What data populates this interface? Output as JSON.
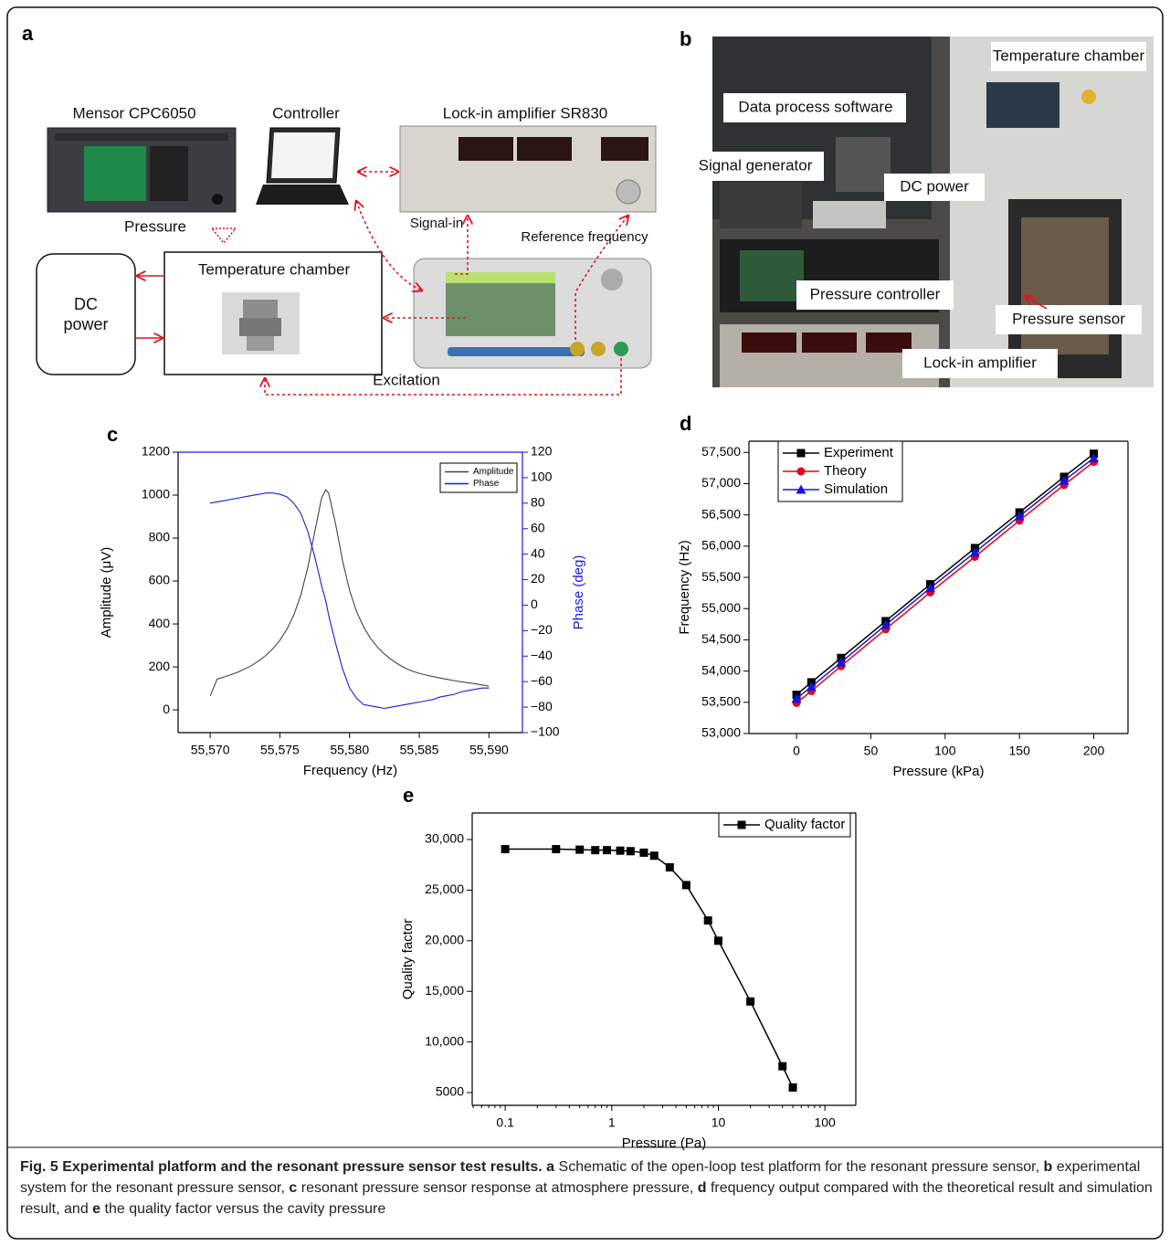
{
  "figure": {
    "panel_a": {
      "letter": "a",
      "mensor": "Mensor CPC6050",
      "controller": "Controller",
      "lockin": "Lock-in amplifier SR830",
      "pressure": "Pressure",
      "signal_in": "Signal-in",
      "reference": "Reference frequency",
      "chamber": "Temperature chamber",
      "dc_power": "DC power",
      "excitation": "Excitation"
    },
    "panel_b": {
      "letter": "b",
      "chamber": "Temperature chamber",
      "software": "Data process software",
      "generator": "Signal generator",
      "dc_power": "DC power",
      "controller": "Pressure controller",
      "sensor": "Pressure sensor",
      "lockin": "Lock-in amplifier"
    }
  },
  "chart_data": [
    {
      "type": "line",
      "letter": "c",
      "xlabel": "Frequency (Hz)",
      "ylabel": "Amplitude (μV)",
      "y2label": "Phase (deg)",
      "legend": "upper right",
      "x": [
        55570,
        55570.5,
        55571,
        55571.5,
        55572,
        55572.5,
        55573,
        55573.5,
        55574,
        55574.5,
        55575,
        55575.5,
        55576,
        55576.5,
        55577,
        55577.5,
        55578,
        55578.3,
        55578.5,
        55579,
        55579.5,
        55580,
        55580.5,
        55581,
        55581.5,
        55582,
        55582.5,
        55583,
        55583.5,
        55584,
        55584.5,
        55585,
        55585.5,
        55586,
        55586.5,
        55587,
        55587.5,
        55588,
        55588.5,
        55589,
        55589.5,
        55590
      ],
      "series": [
        {
          "name": "Amplitude",
          "color": "#444444",
          "values": [
            65,
            143,
            153,
            164,
            176,
            191,
            208,
            229,
            254,
            285,
            324,
            375,
            442,
            534,
            662,
            829,
            988,
            1025,
            1009,
            865,
            693,
            557,
            458,
            387,
            333,
            292,
            260,
            234,
            212,
            194,
            180,
            170,
            162,
            155,
            148,
            142,
            136,
            131,
            126,
            122,
            116,
            110
          ]
        },
        {
          "name": "Phase",
          "color": "#1a1adb",
          "axis": "y2",
          "values": [
            80,
            81,
            82,
            83,
            84,
            85,
            86,
            87,
            88,
            88,
            87,
            85,
            80,
            72,
            58,
            38,
            15,
            3,
            -8,
            -30,
            -50,
            -65,
            -73,
            -78,
            -79,
            -80,
            -81,
            -80,
            -79,
            -78,
            -77,
            -76,
            -75,
            -74,
            -72,
            -71,
            -70,
            -68,
            -67,
            -66,
            -65,
            -65
          ]
        }
      ],
      "xlim": [
        55567.7,
        55592.4
      ],
      "xticks": [
        {
          "value": 55570,
          "label": "55,570"
        },
        {
          "value": 55575,
          "label": "55,575"
        },
        {
          "value": 55580,
          "label": "55,580"
        },
        {
          "value": 55585,
          "label": "55,585"
        },
        {
          "value": 55590,
          "label": "55,590"
        }
      ],
      "ylim": [
        -106,
        1200
      ],
      "yticks": [
        0,
        200,
        400,
        600,
        800,
        1000,
        1200
      ],
      "y2lim": [
        -100,
        120
      ],
      "y2ticks": [
        {
          "value": -100,
          "label": "−100"
        },
        {
          "value": -80,
          "label": "−80"
        },
        {
          "value": -60,
          "label": "−60"
        },
        {
          "value": -40,
          "label": "−40"
        },
        {
          "value": -20,
          "label": "−20"
        },
        0,
        20,
        40,
        60,
        80,
        100,
        120
      ]
    },
    {
      "type": "line",
      "letter": "d",
      "xlabel": "Pressure (kPa)",
      "ylabel": "Frequency (Hz)",
      "legend": "upper left",
      "x": [
        0,
        10,
        30,
        60,
        90,
        120,
        150,
        180,
        200
      ],
      "series": [
        {
          "name": "Experiment",
          "color": "#000000",
          "marker": "square",
          "values": [
            53620,
            53820,
            54210,
            54800,
            55390,
            55970,
            56540,
            57110,
            57480
          ]
        },
        {
          "name": "Theory",
          "color": "#e8001c",
          "marker": "circle",
          "values": [
            53490,
            53680,
            54080,
            54670,
            55260,
            55830,
            56410,
            56980,
            57350
          ]
        },
        {
          "name": "Simulation",
          "color": "#1515e0",
          "marker": "triangle",
          "values": [
            53560,
            53750,
            54140,
            54740,
            55330,
            55900,
            56480,
            57050,
            57410
          ]
        }
      ],
      "xlim": [
        -32,
        223
      ],
      "xticks": [
        0,
        50,
        100,
        150,
        200
      ],
      "ylim": [
        53000,
        57680
      ],
      "yticks": [
        {
          "value": 53000,
          "label": "53,000"
        },
        {
          "value": 53500,
          "label": "53,500"
        },
        {
          "value": 54000,
          "label": "54,000"
        },
        {
          "value": 54500,
          "label": "54,500"
        },
        {
          "value": 55000,
          "label": "55,000"
        },
        {
          "value": 55500,
          "label": "55,500"
        },
        {
          "value": 56000,
          "label": "56,000"
        },
        {
          "value": 56500,
          "label": "56,500"
        },
        {
          "value": 57000,
          "label": "57,000"
        },
        {
          "value": 57500,
          "label": "57,500"
        }
      ]
    },
    {
      "type": "line",
      "letter": "e",
      "xlabel": "Pressure (Pa)",
      "ylabel": "Quality factor",
      "legend": "upper right",
      "xscale": "log",
      "x": [
        0.1,
        0.3,
        0.5,
        0.7,
        0.9,
        1.2,
        1.5,
        2,
        2.5,
        3.5,
        5,
        8,
        10,
        20,
        40,
        50
      ],
      "series": [
        {
          "name": "Quality factor",
          "color": "#000000",
          "marker": "square",
          "values": [
            29050,
            29050,
            29000,
            28950,
            28950,
            28900,
            28850,
            28700,
            28400,
            27250,
            25500,
            22000,
            20000,
            14000,
            7600,
            5500
          ]
        }
      ],
      "xlim": [
        0.049,
        195
      ],
      "xticks": [
        0.1,
        1,
        10,
        100
      ],
      "ylim": [
        3740,
        32620
      ],
      "yticks": [
        5000,
        {
          "value": 10000,
          "label": "10,000"
        },
        {
          "value": 15000,
          "label": "15,000"
        },
        {
          "value": 20000,
          "label": "20,000"
        },
        {
          "value": 25000,
          "label": "25,000"
        },
        {
          "value": 30000,
          "label": "30,000"
        }
      ]
    }
  ],
  "caption": {
    "title": "Fig. 5 Experimental platform and the resonant pressure sensor test results.",
    "items": [
      {
        "letter": "a",
        "text": "Schematic of the open-loop test platform for the resonant pressure sensor,"
      },
      {
        "letter": "b",
        "text": "experimental system for the resonant pressure sensor,"
      },
      {
        "letter": "c",
        "text": "resonant pressure sensor response at atmosphere pressure,"
      },
      {
        "letter": "d",
        "text": "frequency output compared with the theoretical result and simulation result, and"
      },
      {
        "letter": "e",
        "text": "the quality factor versus the cavity pressure"
      }
    ]
  }
}
